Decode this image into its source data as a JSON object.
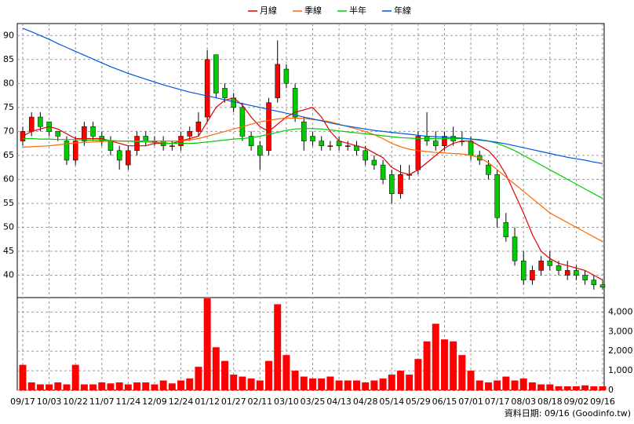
{
  "chart_data": {
    "type": "candlestick",
    "source": "資料日期: 09/16 (Goodinfo.tw)",
    "categories": [
      "09/17",
      null,
      null,
      "10/03",
      null,
      null,
      "10/22",
      null,
      null,
      "11/07",
      null,
      null,
      "11/24",
      null,
      null,
      "12/09",
      null,
      null,
      "12/24",
      null,
      null,
      "01/12",
      null,
      null,
      "01/27",
      null,
      null,
      "02/11",
      null,
      null,
      "03/10",
      null,
      null,
      "03/25",
      null,
      null,
      "04/13",
      null,
      null,
      "04/28",
      null,
      null,
      "05/14",
      null,
      null,
      "05/29",
      null,
      null,
      "06/15",
      null,
      null,
      "07/01",
      null,
      null,
      "07/17",
      null,
      null,
      "08/03",
      null,
      null,
      "08/18",
      null,
      null,
      "09/02",
      null,
      null,
      "09/16"
    ],
    "ohlc": {
      "up_color": "#ff0000",
      "down_color": "#00cc00",
      "open": [
        68,
        70,
        73,
        72,
        70,
        68,
        64,
        68,
        71,
        69,
        68,
        66,
        63,
        66,
        69,
        68,
        68,
        67,
        67,
        69,
        70,
        73,
        86,
        79,
        77,
        75,
        69,
        67,
        66,
        77,
        83,
        79,
        72,
        69,
        68,
        67,
        68,
        67,
        67,
        66,
        64,
        63,
        61,
        57,
        61,
        62,
        69,
        68,
        67,
        69,
        68,
        68,
        65,
        63,
        61,
        51,
        48,
        43,
        39,
        41,
        43,
        42,
        40,
        41,
        40,
        39,
        38
      ],
      "high": [
        71,
        74,
        74,
        72,
        70,
        69,
        69,
        72,
        72,
        70,
        69,
        67,
        67,
        70,
        70,
        69,
        69,
        68,
        70,
        71,
        74,
        87,
        86,
        80,
        78,
        76,
        70,
        68,
        77,
        89,
        84,
        80,
        73,
        70,
        69,
        68,
        69,
        68,
        68,
        67,
        65,
        64,
        62,
        63,
        63,
        70,
        74,
        70,
        70,
        71,
        70,
        69,
        66,
        64,
        62,
        53,
        50,
        45,
        42,
        44,
        45,
        43,
        43,
        42,
        41,
        40,
        39
      ],
      "low": [
        67,
        69,
        70,
        69,
        68,
        63,
        63,
        67,
        68,
        67,
        65,
        62,
        62,
        65,
        67,
        67,
        66,
        66,
        66,
        68,
        69,
        72,
        77,
        76,
        74,
        68,
        66,
        62,
        65,
        76,
        79,
        72,
        66,
        67,
        66,
        66,
        66,
        66,
        65,
        63,
        62,
        59,
        55,
        56,
        60,
        61,
        67,
        66,
        66,
        67,
        67,
        64,
        63,
        60,
        50,
        47,
        42,
        38,
        38,
        40,
        41,
        40,
        39,
        39,
        38,
        37,
        37
      ],
      "close": [
        70,
        73,
        71,
        70,
        69,
        64,
        68,
        71,
        69,
        68,
        66,
        64,
        66,
        69,
        68,
        68,
        67,
        67,
        69,
        70,
        72,
        85,
        78,
        77,
        75,
        69,
        67,
        65,
        76,
        84,
        80,
        73,
        68,
        68,
        67,
        67,
        67,
        67,
        66,
        64,
        63,
        60,
        57,
        61,
        61,
        69,
        68,
        67,
        69,
        68,
        68,
        65,
        64,
        61,
        52,
        48,
        43,
        39,
        41,
        43,
        42,
        41,
        41,
        40,
        39,
        38,
        37.5
      ]
    },
    "series": [
      {
        "name": "月線",
        "color": "#e00000",
        "values": [
          69,
          70,
          70.5,
          71,
          70.5,
          69.5,
          68.5,
          68.5,
          68.5,
          68.5,
          68,
          67.5,
          67,
          67,
          67,
          67.5,
          67.5,
          67.5,
          68,
          68.5,
          69,
          72,
          75,
          76.5,
          77,
          75.5,
          73,
          71,
          70,
          71.5,
          73,
          74,
          74.5,
          75,
          73,
          70,
          68,
          67.5,
          67,
          66.5,
          65.5,
          64.5,
          62.5,
          61.5,
          61,
          62,
          63.5,
          65,
          66.5,
          67.5,
          68,
          68,
          67,
          66,
          64,
          61,
          57,
          53,
          48.5,
          45,
          43.5,
          42.5,
          42,
          41.5,
          41,
          40,
          39
        ]
      },
      {
        "name": "季線",
        "color": "#ff6600",
        "values": [
          66.7,
          66.8,
          66.9,
          67,
          67.2,
          67.4,
          67.6,
          67.7,
          67.8,
          67.9,
          68,
          68,
          68,
          68,
          68,
          68,
          68,
          68,
          68,
          68.2,
          68.5,
          69,
          69.5,
          70,
          70.5,
          71,
          71.5,
          72,
          72.3,
          72.6,
          72.8,
          72.8,
          72.7,
          72.5,
          72.3,
          72,
          71.5,
          71,
          70.5,
          70,
          69.3,
          68.5,
          67.5,
          66.8,
          66.3,
          66,
          65.8,
          65.6,
          65.5,
          65.4,
          65.3,
          65,
          64.5,
          63.5,
          62,
          60.5,
          59,
          57.5,
          56,
          54.5,
          53,
          52,
          51,
          50,
          49,
          48,
          47
        ]
      },
      {
        "name": "半年",
        "color": "#00cc00",
        "values": [
          68.5,
          68.5,
          68.4,
          68.4,
          68.3,
          68.3,
          68.3,
          68.2,
          68.2,
          68.2,
          68.1,
          68,
          68,
          67.9,
          67.8,
          67.7,
          67.6,
          67.5,
          67.5,
          67.5,
          67.6,
          67.8,
          68,
          68.2,
          68.4,
          68.5,
          68.7,
          69,
          69.4,
          69.8,
          70.2,
          70.5,
          70.6,
          70.6,
          70.5,
          70.3,
          70.1,
          69.9,
          69.7,
          69.5,
          69.3,
          69.1,
          68.9,
          68.7,
          68.6,
          68.5,
          68.5,
          68.5,
          68.5,
          68.5,
          68.5,
          68.4,
          68.3,
          68,
          67.5,
          66.8,
          66,
          65,
          64,
          63,
          62,
          61,
          60,
          59,
          58,
          57,
          56
        ]
      },
      {
        "name": "年線",
        "color": "#0055dd",
        "values": [
          91.5,
          90.8,
          90,
          89.2,
          88.3,
          87.5,
          86.7,
          85.9,
          85.1,
          84.3,
          83.5,
          82.8,
          82.1,
          81.5,
          80.9,
          80.3,
          79.7,
          79.2,
          78.7,
          78.2,
          77.8,
          77.4,
          77,
          76.6,
          76.2,
          75.8,
          75.4,
          75,
          74.6,
          74.2,
          73.8,
          73.4,
          73,
          72.6,
          72.2,
          71.8,
          71.4,
          71.1,
          70.8,
          70.5,
          70.2,
          70,
          69.8,
          69.6,
          69.4,
          69.2,
          69,
          68.9,
          68.8,
          68.7,
          68.6,
          68.4,
          68.2,
          68,
          67.7,
          67.4,
          67,
          66.6,
          66.2,
          65.8,
          65.4,
          65,
          64.6,
          64.3,
          64,
          63.6,
          63.3
        ]
      }
    ],
    "volume": {
      "axis": "y2",
      "color": "#ff0000",
      "values": [
        1300,
        400,
        300,
        300,
        400,
        300,
        1300,
        300,
        300,
        400,
        350,
        400,
        300,
        400,
        400,
        300,
        500,
        350,
        500,
        600,
        1200,
        4700,
        2200,
        1500,
        800,
        700,
        600,
        500,
        1500,
        4400,
        1800,
        1000,
        700,
        600,
        600,
        700,
        500,
        500,
        500,
        400,
        500,
        600,
        800,
        1000,
        800,
        1600,
        2500,
        3400,
        2600,
        2500,
        1800,
        1000,
        500,
        400,
        500,
        700,
        500,
        600,
        400,
        300,
        300,
        200,
        200,
        200,
        250,
        200,
        200
      ]
    },
    "ylim": [
      35.5,
      92.5
    ],
    "yticks": [
      40,
      45,
      50,
      55,
      60,
      65,
      70,
      75,
      80,
      85,
      90
    ],
    "y2lim": [
      0,
      4700
    ],
    "y2ticks": [
      0,
      {
        "value": 1000,
        "label": "1,000"
      },
      {
        "value": 2000,
        "label": "2,000"
      },
      {
        "value": 3000,
        "label": "3,000"
      },
      {
        "value": 4000,
        "label": "4,000"
      }
    ],
    "grid": true,
    "legend": "top"
  }
}
